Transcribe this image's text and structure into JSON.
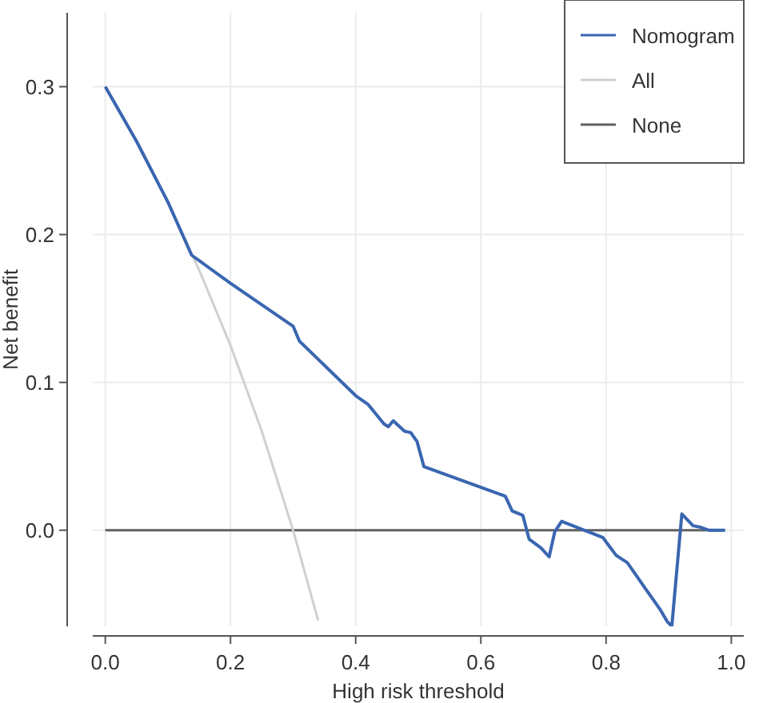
{
  "chart_data": {
    "type": "line",
    "xlabel": "High risk threshold",
    "ylabel": "Net benefit",
    "xlim": [
      -0.02,
      1.02
    ],
    "ylim": [
      -0.065,
      0.35
    ],
    "xticks": [
      {
        "value": 0,
        "label": "0.0"
      },
      {
        "value": 0.2,
        "label": "0.2"
      },
      {
        "value": 0.4,
        "label": "0.4"
      },
      {
        "value": 0.6,
        "label": "0.6"
      },
      {
        "value": 0.8,
        "label": "0.8"
      },
      {
        "value": 1,
        "label": "1.0"
      }
    ],
    "yticks": [
      {
        "value": 0,
        "label": "0.0"
      },
      {
        "value": 0.1,
        "label": "0.1"
      },
      {
        "value": 0.2,
        "label": "0.2"
      },
      {
        "value": 0.3,
        "label": "0.3"
      }
    ],
    "grid": true,
    "legend": "top right",
    "series": [
      {
        "name": "Nomogram",
        "color": "#3a66b0",
        "x": [
          0,
          0.05,
          0.1,
          0.138,
          0.2,
          0.3,
          0.31,
          0.4,
          0.42,
          0.445,
          0.452,
          0.46,
          0.478,
          0.488,
          0.498,
          0.509,
          0.639,
          0.65,
          0.667,
          0.677,
          0.696,
          0.709,
          0.718,
          0.729,
          0.795,
          0.816,
          0.834,
          0.862,
          0.887,
          0.898,
          0.905,
          0.921,
          0.939,
          0.951,
          0.964,
          0.99
        ],
        "values": [
          0.3,
          0.263,
          0.222,
          0.186,
          0.167,
          0.138,
          0.128,
          0.091,
          0.085,
          0.072,
          0.07,
          0.074,
          0.067,
          0.066,
          0.06,
          0.043,
          0.023,
          0.013,
          0.01,
          -0.006,
          -0.012,
          -0.018,
          -0.001,
          0.006,
          -0.005,
          -0.017,
          -0.022,
          -0.039,
          -0.054,
          -0.062,
          -0.065,
          0.011,
          0.003,
          0.002,
          0,
          0
        ]
      },
      {
        "name": "All",
        "color": "#d0d0d0",
        "x": [
          0,
          0.05,
          0.1,
          0.15,
          0.2,
          0.25,
          0.3,
          0.34
        ],
        "values": [
          0.3,
          0.263,
          0.222,
          0.176,
          0.125,
          0.067,
          0,
          -0.061
        ]
      },
      {
        "name": "None",
        "color": "#606060",
        "x": [
          0,
          0.99
        ],
        "values": [
          0,
          0
        ]
      }
    ]
  }
}
